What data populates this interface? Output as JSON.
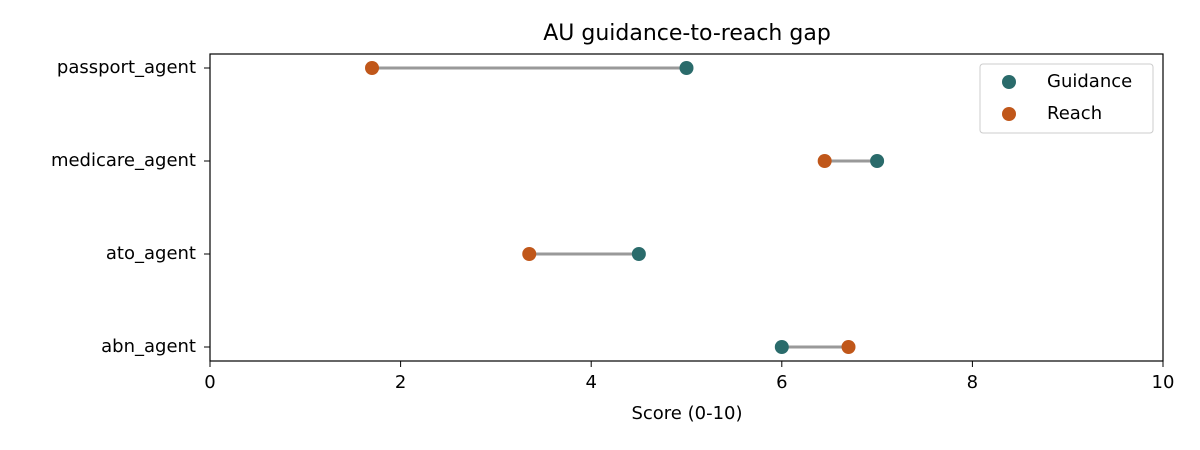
{
  "chart_data": {
    "type": "dumbbell",
    "title": "AU guidance-to-reach gap",
    "xlabel": "Score (0-10)",
    "categories": [
      "passport_agent",
      "medicare_agent",
      "ato_agent",
      "abn_agent"
    ],
    "series": [
      {
        "name": "Guidance",
        "color": "#2a6b6b",
        "values": [
          5.0,
          7.0,
          4.5,
          6.0
        ]
      },
      {
        "name": "Reach",
        "color": "#c0571a",
        "values": [
          1.7,
          6.45,
          3.35,
          6.7
        ]
      }
    ],
    "connector_color": "#999999",
    "xlim": [
      0,
      10
    ],
    "xticks": [
      0,
      2,
      4,
      6,
      8,
      10
    ],
    "grid": false,
    "legend": "upper right"
  }
}
